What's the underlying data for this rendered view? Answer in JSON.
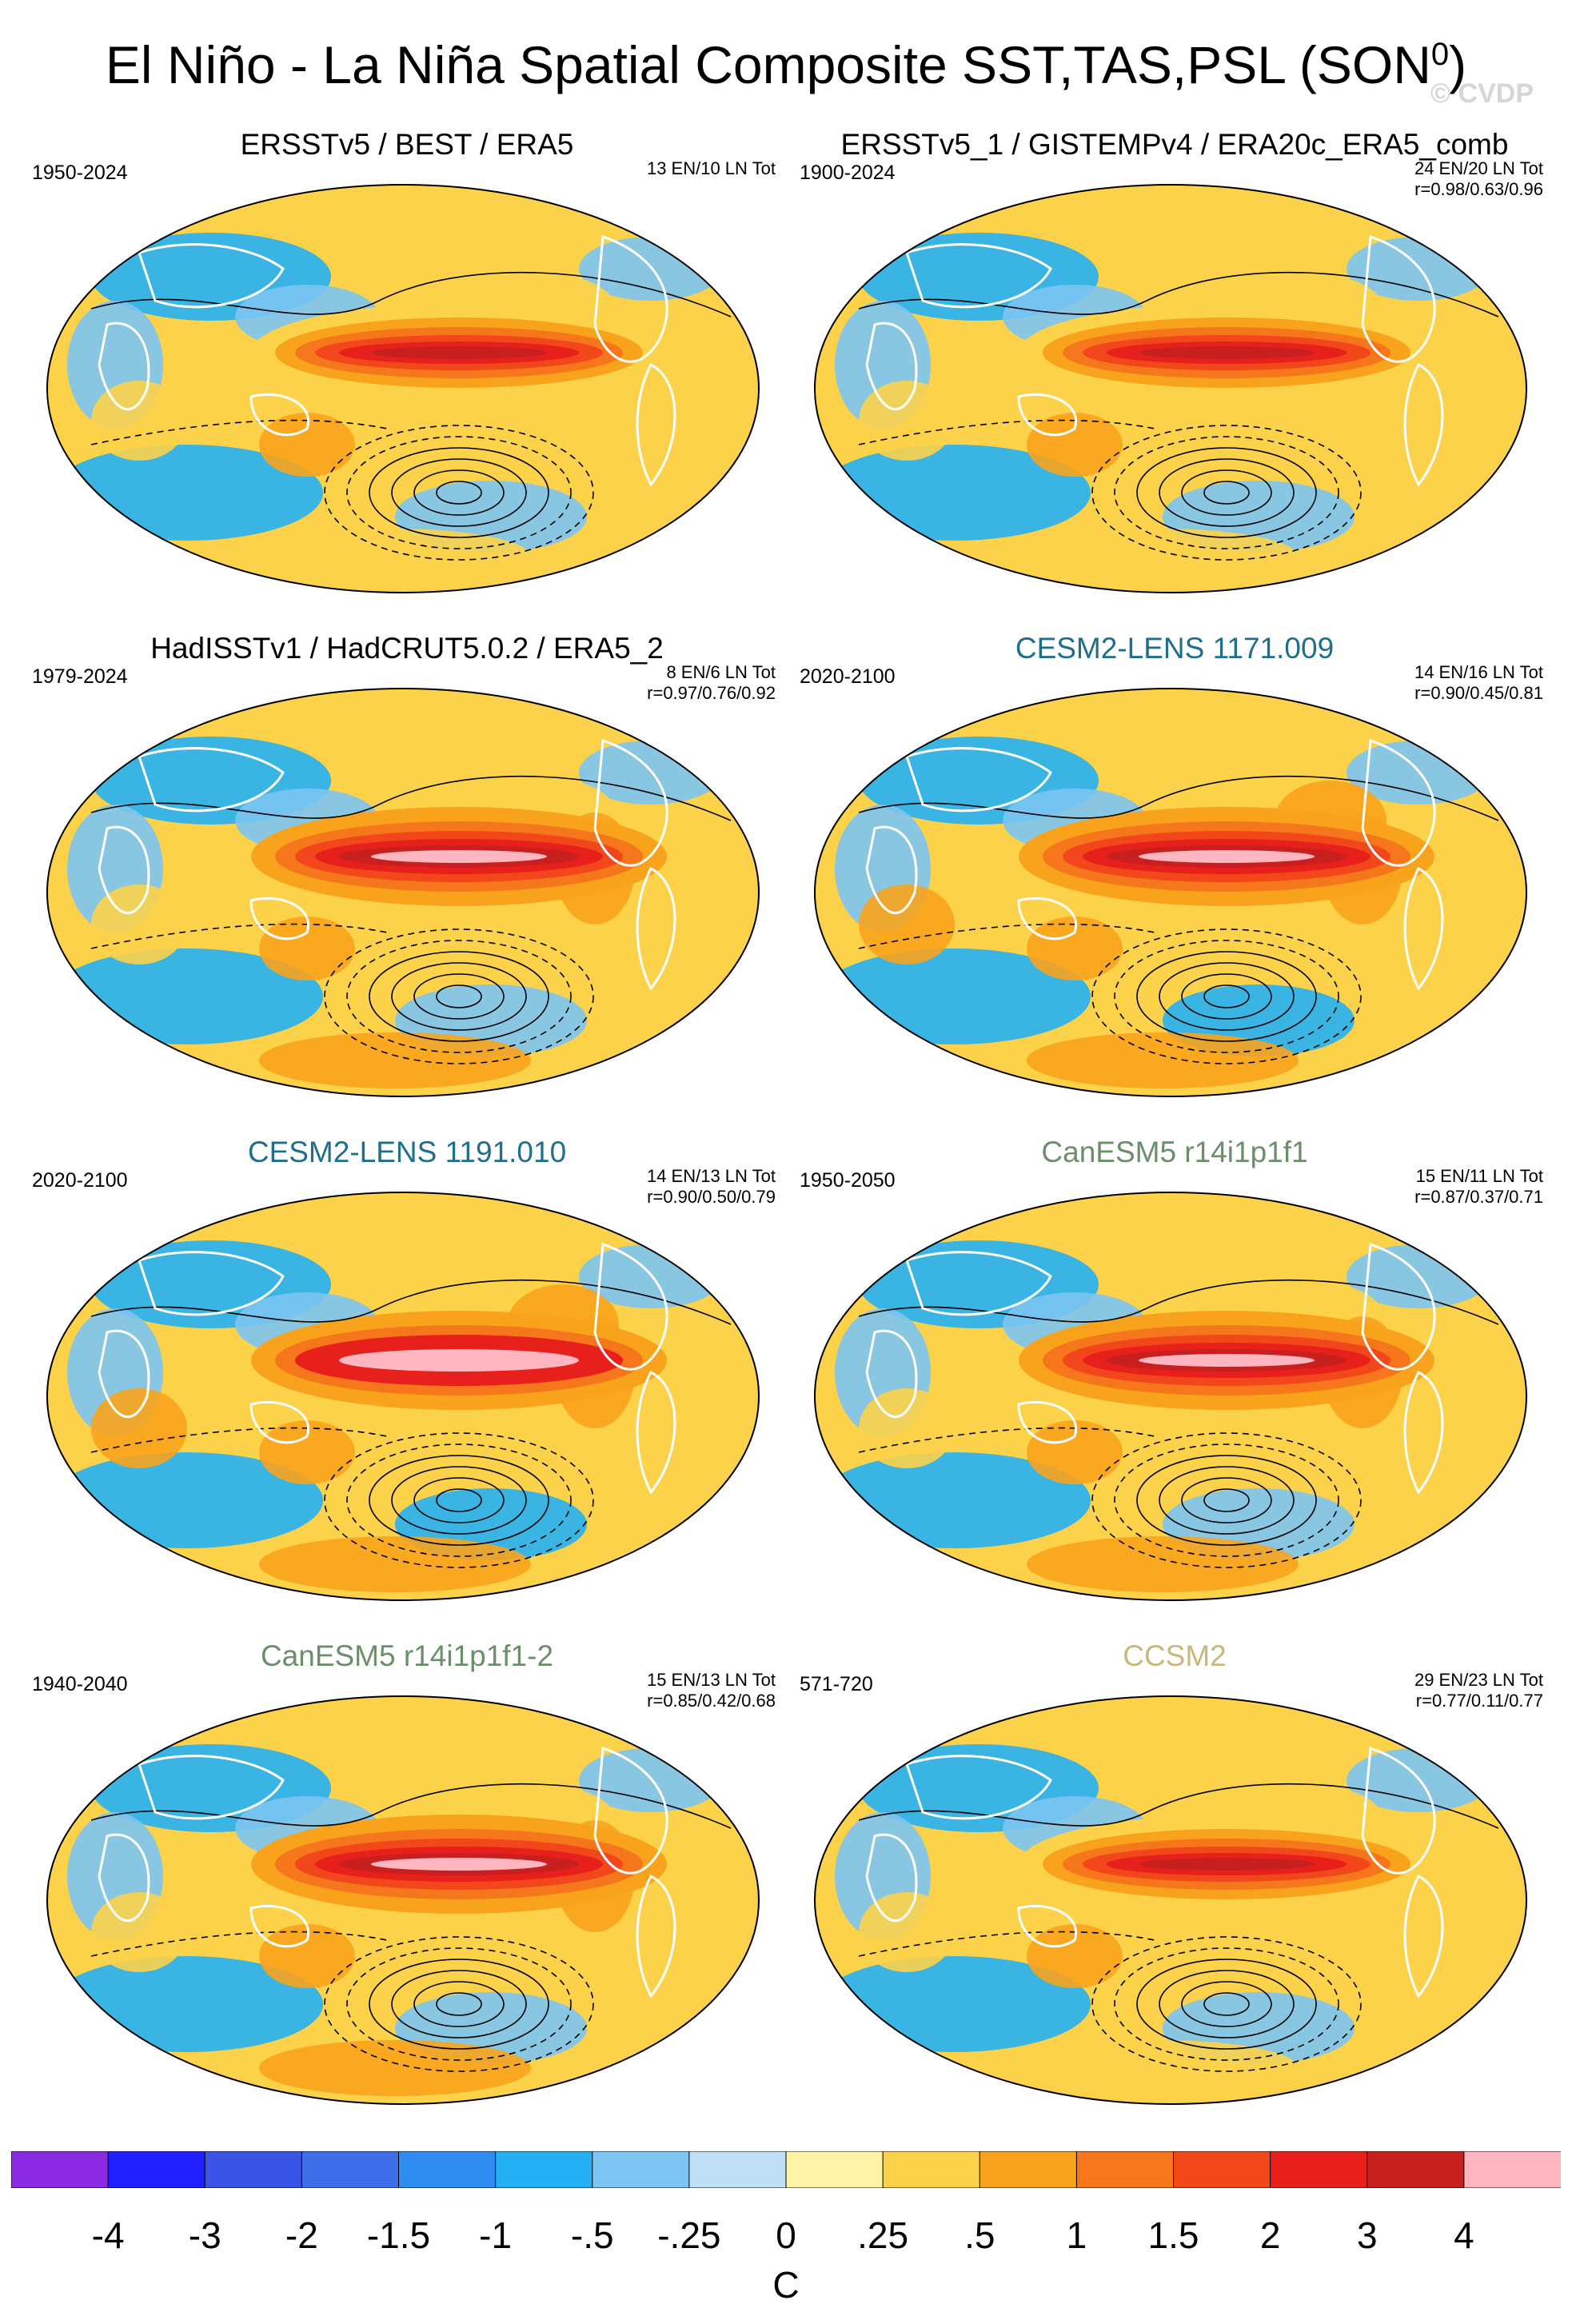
{
  "figure": {
    "title": "El Niño - La Niña Spatial Composite SST,TAS,PSL (SON",
    "title_superscript": "0",
    "title_suffix": ")",
    "watermark": "© CVDP"
  },
  "panels": [
    {
      "title": "ERSSTv5 / BEST / ERA5",
      "title_color": "#000000",
      "years": "1950-2024",
      "counts": "13 EN/10 LN Tot",
      "r": "",
      "intensity": 0.95,
      "palette": "obs"
    },
    {
      "title": "ERSSTv5_1 / GISTEMPv4 / ERA20c_ERA5_comb",
      "title_color": "#000000",
      "years": "1900-2024",
      "counts": "24 EN/20 LN Tot",
      "r": "r=0.98/0.63/0.96",
      "intensity": 0.85,
      "palette": "obs"
    },
    {
      "title": "HadISSTv1 / HadCRUT5.0.2 / ERA5_2",
      "title_color": "#000000",
      "years": "1979-2024",
      "counts": "8 EN/6 LN Tot",
      "r": "r=0.97/0.76/0.92",
      "intensity": 1.0,
      "palette": "obs"
    },
    {
      "title": "CESM2-LENS 1171.009",
      "title_color": "#1f6e8c",
      "years": "2020-2100",
      "counts": "14 EN/16 LN Tot",
      "r": "r=0.90/0.45/0.81",
      "intensity": 1.3,
      "palette": "cesm"
    },
    {
      "title": "CESM2-LENS 1191.010",
      "title_color": "#1f6e8c",
      "years": "2020-2100",
      "counts": "14 EN/13 LN Tot",
      "r": "r=0.90/0.50/0.79",
      "intensity": 1.35,
      "palette": "cesm"
    },
    {
      "title": "CanESM5 r14i1p1f1",
      "title_color": "#6b8e6b",
      "years": "1950-2050",
      "counts": "15 EN/11 LN Tot",
      "r": "r=0.87/0.37/0.71",
      "intensity": 1.1,
      "palette": "can"
    },
    {
      "title": "CanESM5 r14i1p1f1-2",
      "title_color": "#6b8e6b",
      "years": "1940-2040",
      "counts": "15 EN/13 LN Tot",
      "r": "r=0.85/0.42/0.68",
      "intensity": 1.1,
      "palette": "can"
    },
    {
      "title": "CCSM2",
      "title_color": "#c8b87a",
      "years": "571-720",
      "counts": "29 EN/23 LN Tot",
      "r": "r=0.77/0.11/0.77",
      "intensity": 0.95,
      "palette": "ccsm"
    }
  ],
  "colorbar": {
    "unit": "C",
    "tick_labels": [
      "-4",
      "-3",
      "-2",
      "-1.5",
      "-1",
      "-.5",
      "-.25",
      "0",
      ".25",
      ".5",
      "1",
      "1.5",
      "2",
      "3",
      "4"
    ],
    "colors": [
      "#8a2be2",
      "#2020ff",
      "#3a55e6",
      "#3f6fe8",
      "#2f8cf0",
      "#25b0f4",
      "#7cc4f2",
      "#bfe0f4",
      "#fff5a8",
      "#fcd24a",
      "#f9a31c",
      "#f6761b",
      "#f2461b",
      "#e8201b",
      "#c8201f",
      "#ffb6c1"
    ]
  },
  "chart_data": {
    "type": "heatmap",
    "title": "El Niño - La Niña Spatial Composite SST,TAS,PSL (SON0)",
    "variables": [
      "SST",
      "TAS",
      "PSL"
    ],
    "season": "SON",
    "colorbar_unit": "C",
    "colorbar_levels": [
      -4,
      -3,
      -2,
      -1.5,
      -1,
      -0.5,
      -0.25,
      0,
      0.25,
      0.5,
      1,
      1.5,
      2,
      3,
      4
    ],
    "layout": "4 rows x 2 columns of global maps",
    "panels": [
      "ERSSTv5 / BEST / ERA5",
      "ERSSTv5_1 / GISTEMPv4 / ERA20c_ERA5_comb",
      "HadISSTv1 / HadCRUT5.0.2 / ERA5_2",
      "CESM2-LENS 1171.009",
      "CESM2-LENS 1191.010",
      "CanESM5 r14i1p1f1",
      "CanESM5 r14i1p1f1-2",
      "CCSM2"
    ]
  }
}
